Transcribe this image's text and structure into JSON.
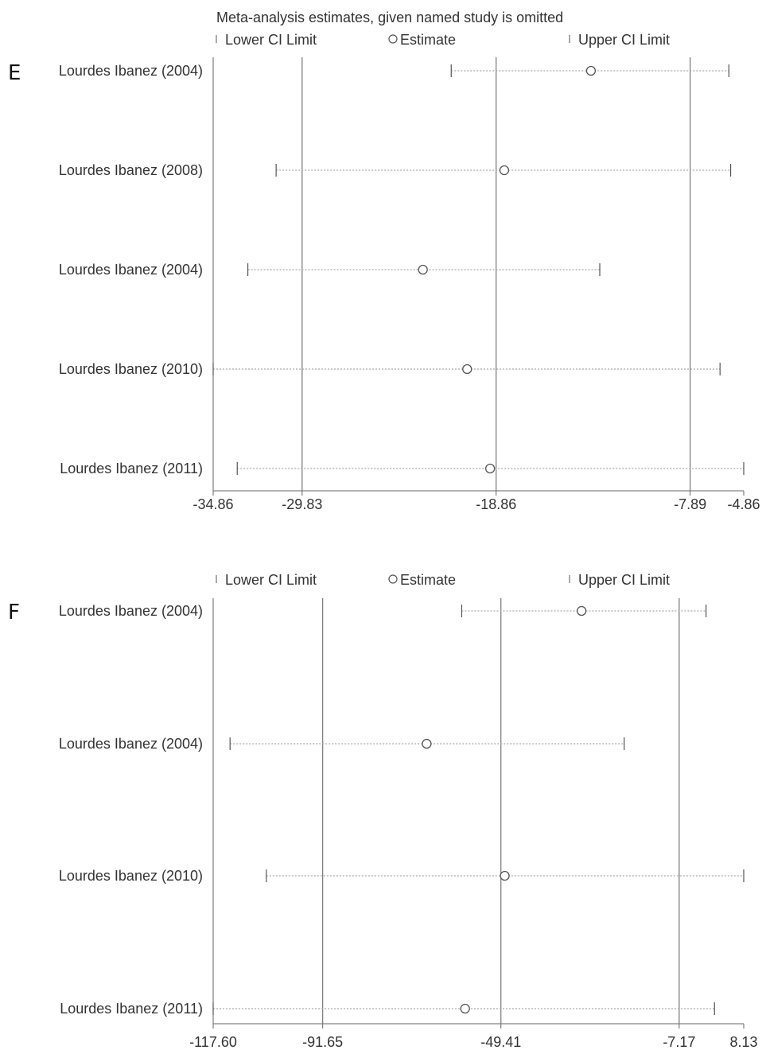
{
  "chart_data": [
    {
      "panel_label": "E",
      "type": "scatter",
      "title": "Meta-analysis estimates, given named study is omitted",
      "legend": {
        "placement": "top",
        "items": [
          "Lower CI Limit",
          "Estimate",
          "Upper CI Limit"
        ]
      },
      "xlim": [
        -34.86,
        -4.86
      ],
      "xticks": [
        -34.86,
        -29.83,
        -18.86,
        -7.89,
        -4.86
      ],
      "xtick_labels": [
        "-34.86",
        "-29.83",
        "-18.86",
        "-7.89",
        "-4.86"
      ],
      "reference_lines": [
        -29.83,
        -18.86,
        -7.89
      ],
      "studies": [
        {
          "label": "Lourdes Ibanez (2004)",
          "lower": -21.4,
          "estimate": -13.5,
          "upper": -5.7
        },
        {
          "label": "Lourdes Ibanez (2008)",
          "lower": -31.3,
          "estimate": -18.4,
          "upper": -5.6
        },
        {
          "label": "Lourdes Ibanez (2004)",
          "lower": -32.9,
          "estimate": -23.0,
          "upper": -13.0
        },
        {
          "label": "Lourdes Ibanez (2010)",
          "lower": -34.86,
          "estimate": -20.5,
          "upper": -6.2
        },
        {
          "label": "Lourdes Ibanez (2011)",
          "lower": -33.5,
          "estimate": -19.2,
          "upper": -4.86
        }
      ]
    },
    {
      "panel_label": "F",
      "type": "scatter",
      "title": "",
      "legend": {
        "placement": "top",
        "items": [
          "Lower CI Limit",
          "Estimate",
          "Upper CI Limit"
        ]
      },
      "xlim": [
        -117.6,
        8.13
      ],
      "xticks": [
        -117.6,
        -91.65,
        -49.41,
        -7.17,
        8.13
      ],
      "xtick_labels": [
        "-117.60",
        "-91.65",
        "-49.41",
        "-7.17",
        "8.13"
      ],
      "reference_lines": [
        -91.65,
        -49.41,
        -7.17
      ],
      "studies": [
        {
          "label": "Lourdes Ibanez (2004)",
          "lower": -58.7,
          "estimate": -30.3,
          "upper": -0.8
        },
        {
          "label": "Lourdes Ibanez (2004)",
          "lower": -113.6,
          "estimate": -67.0,
          "upper": -20.2
        },
        {
          "label": "Lourdes Ibanez (2010)",
          "lower": -105.0,
          "estimate": -48.5,
          "upper": 8.13
        },
        {
          "label": "Lourdes Ibanez (2011)",
          "lower": -117.6,
          "estimate": -57.9,
          "upper": 1.2
        }
      ]
    }
  ]
}
